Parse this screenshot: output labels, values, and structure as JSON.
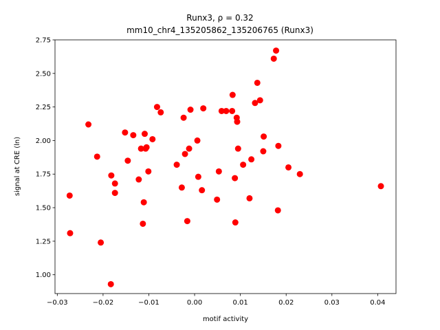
{
  "chart_data": {
    "type": "scatter",
    "title_line1": "Runx3, ρ = 0.32",
    "title_line2": "mm10_chr4_135205862_135206765 (Runx3)",
    "xlabel": "motif activity",
    "ylabel": "signal at CRE (ln)",
    "xlim": [
      -0.0305,
      0.044
    ],
    "ylim": [
      0.86,
      2.75
    ],
    "xticks": [
      "−0.03",
      "−0.02",
      "−0.01",
      "0.00",
      "0.01",
      "0.02",
      "0.03",
      "0.04"
    ],
    "xtick_values": [
      -0.03,
      -0.02,
      -0.01,
      0.0,
      0.01,
      0.02,
      0.03,
      0.04
    ],
    "yticks": [
      "1.00",
      "1.25",
      "1.50",
      "1.75",
      "2.00",
      "2.25",
      "2.50",
      "2.75"
    ],
    "ytick_values": [
      1.0,
      1.25,
      1.5,
      1.75,
      2.0,
      2.25,
      2.5,
      2.75
    ],
    "grid": false,
    "point_color": "#ff0000",
    "points": [
      {
        "x": -0.0273,
        "y": 1.59
      },
      {
        "x": -0.0272,
        "y": 1.31
      },
      {
        "x": -0.0232,
        "y": 2.12
      },
      {
        "x": -0.0213,
        "y": 1.88
      },
      {
        "x": -0.0205,
        "y": 1.24
      },
      {
        "x": -0.0183,
        "y": 0.93
      },
      {
        "x": -0.0182,
        "y": 1.74
      },
      {
        "x": -0.0174,
        "y": 1.68
      },
      {
        "x": -0.0174,
        "y": 1.61
      },
      {
        "x": -0.0152,
        "y": 2.06
      },
      {
        "x": -0.0146,
        "y": 1.85
      },
      {
        "x": -0.0134,
        "y": 2.04
      },
      {
        "x": -0.0122,
        "y": 1.71
      },
      {
        "x": -0.0117,
        "y": 1.94
      },
      {
        "x": -0.0113,
        "y": 1.38
      },
      {
        "x": -0.0111,
        "y": 1.54
      },
      {
        "x": -0.0109,
        "y": 2.05
      },
      {
        "x": -0.0107,
        "y": 1.94
      },
      {
        "x": -0.0105,
        "y": 1.95
      },
      {
        "x": -0.0101,
        "y": 1.77
      },
      {
        "x": -0.0092,
        "y": 2.01
      },
      {
        "x": -0.0082,
        "y": 2.25
      },
      {
        "x": -0.0074,
        "y": 2.21
      },
      {
        "x": -0.0039,
        "y": 1.82
      },
      {
        "x": -0.0028,
        "y": 1.65
      },
      {
        "x": -0.0024,
        "y": 2.17
      },
      {
        "x": -0.0021,
        "y": 1.9
      },
      {
        "x": -0.0016,
        "y": 1.4
      },
      {
        "x": -0.0012,
        "y": 1.94
      },
      {
        "x": -0.0009,
        "y": 2.23
      },
      {
        "x": 0.0006,
        "y": 2.0
      },
      {
        "x": 0.0008,
        "y": 1.73
      },
      {
        "x": 0.0016,
        "y": 1.63
      },
      {
        "x": 0.0019,
        "y": 2.24
      },
      {
        "x": 0.0049,
        "y": 1.56
      },
      {
        "x": 0.0053,
        "y": 1.77
      },
      {
        "x": 0.0059,
        "y": 2.22
      },
      {
        "x": 0.0069,
        "y": 2.22
      },
      {
        "x": 0.0082,
        "y": 2.22
      },
      {
        "x": 0.0083,
        "y": 2.34
      },
      {
        "x": 0.0088,
        "y": 1.72
      },
      {
        "x": 0.0089,
        "y": 1.39
      },
      {
        "x": 0.0092,
        "y": 2.17
      },
      {
        "x": 0.0093,
        "y": 2.14
      },
      {
        "x": 0.0095,
        "y": 1.94
      },
      {
        "x": 0.0106,
        "y": 1.82
      },
      {
        "x": 0.012,
        "y": 1.57
      },
      {
        "x": 0.0124,
        "y": 1.86
      },
      {
        "x": 0.0132,
        "y": 2.28
      },
      {
        "x": 0.0137,
        "y": 2.43
      },
      {
        "x": 0.0143,
        "y": 2.3
      },
      {
        "x": 0.015,
        "y": 1.92
      },
      {
        "x": 0.0151,
        "y": 2.03
      },
      {
        "x": 0.0173,
        "y": 2.61
      },
      {
        "x": 0.0178,
        "y": 2.67
      },
      {
        "x": 0.0182,
        "y": 1.48
      },
      {
        "x": 0.0183,
        "y": 1.96
      },
      {
        "x": 0.0205,
        "y": 1.8
      },
      {
        "x": 0.023,
        "y": 1.75
      },
      {
        "x": 0.0407,
        "y": 1.66
      }
    ]
  }
}
